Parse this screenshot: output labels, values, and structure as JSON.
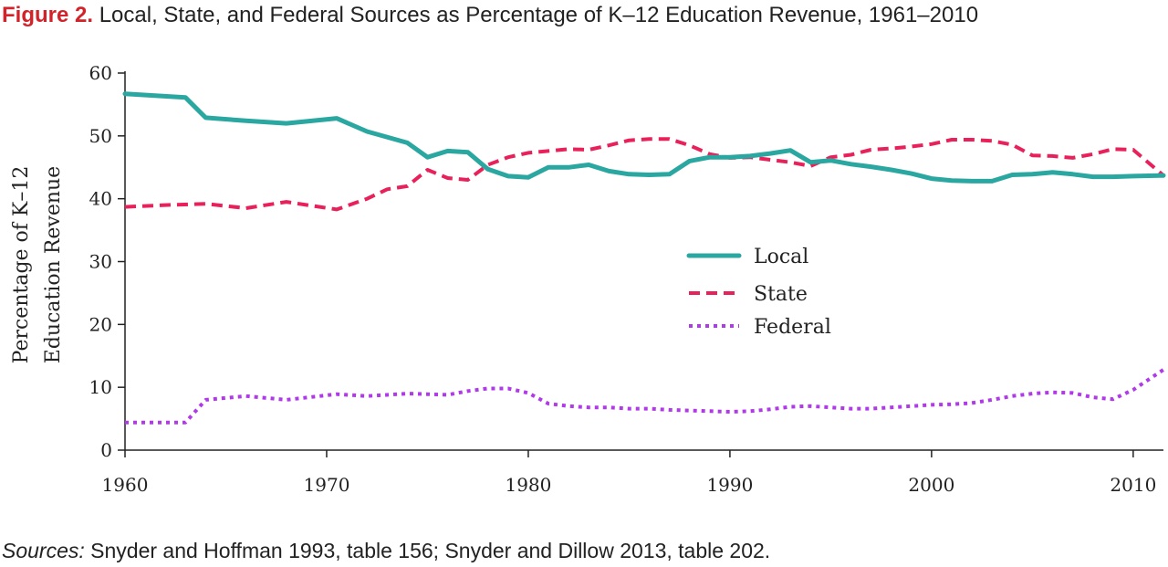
{
  "title": {
    "label": "Figure 2.",
    "text": "Local, State, and Federal Sources as Percentage of K–12 Education Revenue, 1961–2010"
  },
  "sources": {
    "label": "Sources:",
    "text": "Snyder and Hoffman 1993, table 156; Snyder and Dillow 2013, table 202."
  },
  "colors": {
    "local": "#2aa7a0",
    "state": "#e8215a",
    "federal": "#b03ae8",
    "title_accent": "#d2232a",
    "axis": "#222222"
  },
  "chart_data": {
    "type": "line",
    "title": "Local, State, and Federal Sources as Percentage of K–12 Education Revenue, 1961–2010",
    "xlabel": "",
    "ylabel_lines": [
      "Percentage of K–12",
      "Education Revenue"
    ],
    "xlim": [
      1960,
      2011.5
    ],
    "ylim": [
      0,
      60
    ],
    "xticks": [
      1960,
      1970,
      1980,
      1990,
      2000,
      2010
    ],
    "yticks": [
      0,
      10,
      20,
      30,
      40,
      50,
      60
    ],
    "grid": false,
    "legend_position": "center-right",
    "series": [
      {
        "name": "Local",
        "style": "solid",
        "x": [
          1960,
          1963,
          1964,
          1966,
          1968,
          1970.5,
          1972,
          1974,
          1975,
          1976,
          1977,
          1978,
          1979,
          1980,
          1981,
          1982,
          1983,
          1984,
          1985,
          1986,
          1987,
          1988,
          1989,
          1990,
          1991,
          1992,
          1993,
          1994,
          1995,
          1996,
          1997,
          1998,
          1999,
          2000,
          2001,
          2002,
          2003,
          2004,
          2005,
          2006,
          2007,
          2008,
          2009,
          2010,
          2011.5
        ],
        "values": [
          56.7,
          56.1,
          52.9,
          52.4,
          52.0,
          52.8,
          50.7,
          48.9,
          46.6,
          47.6,
          47.4,
          44.7,
          43.6,
          43.4,
          45.0,
          45.0,
          45.4,
          44.4,
          43.9,
          43.8,
          43.9,
          46.0,
          46.6,
          46.6,
          46.8,
          47.2,
          47.7,
          45.8,
          46.1,
          45.5,
          45.1,
          44.6,
          44.0,
          43.2,
          42.9,
          42.8,
          42.8,
          43.8,
          43.9,
          44.2,
          43.9,
          43.5,
          43.5,
          43.6,
          43.7
        ]
      },
      {
        "name": "State",
        "style": "dashed",
        "x": [
          1960,
          1962,
          1964,
          1966,
          1968,
          1970.5,
          1972,
          1973,
          1974,
          1975,
          1976,
          1977,
          1978,
          1979,
          1980,
          1981,
          1982,
          1983,
          1984,
          1985,
          1986,
          1987,
          1988,
          1989,
          1990,
          1991,
          1992,
          1993,
          1994,
          1995,
          1996,
          1997,
          1998,
          1999,
          2000,
          2001,
          2002,
          2003,
          2004,
          2005,
          2006,
          2007,
          2008,
          2009,
          2010,
          2011.5
        ],
        "values": [
          38.7,
          39.0,
          39.2,
          38.5,
          39.5,
          38.3,
          40.0,
          41.5,
          42.0,
          44.6,
          43.3,
          43.0,
          45.4,
          46.6,
          47.3,
          47.6,
          47.9,
          47.8,
          48.5,
          49.3,
          49.5,
          49.5,
          48.5,
          47.1,
          46.5,
          46.6,
          46.2,
          45.8,
          45.2,
          46.6,
          47.0,
          47.8,
          48.0,
          48.3,
          48.7,
          49.4,
          49.4,
          49.2,
          48.6,
          46.9,
          46.8,
          46.5,
          47.1,
          47.9,
          47.8,
          43.7
        ]
      },
      {
        "name": "Federal",
        "style": "dotted",
        "x": [
          1960,
          1963,
          1964,
          1966,
          1968,
          1970.5,
          1972,
          1974,
          1975,
          1976,
          1977,
          1978,
          1979,
          1980,
          1981,
          1982,
          1983,
          1984,
          1985,
          1986,
          1987,
          1988,
          1989,
          1990,
          1991,
          1992,
          1993,
          1994,
          1995,
          1996,
          1997,
          1998,
          1999,
          2000,
          2001,
          2002,
          2003,
          2004,
          2005,
          2006,
          2007,
          2008,
          2009,
          2010,
          2011.5
        ],
        "values": [
          4.4,
          4.4,
          8.0,
          8.6,
          8.0,
          8.9,
          8.6,
          9.0,
          8.9,
          8.8,
          9.4,
          9.8,
          9.8,
          9.1,
          7.4,
          7.0,
          6.8,
          6.8,
          6.6,
          6.6,
          6.4,
          6.3,
          6.2,
          6.1,
          6.2,
          6.5,
          6.9,
          7.0,
          6.8,
          6.6,
          6.6,
          6.8,
          7.0,
          7.2,
          7.3,
          7.5,
          8.0,
          8.6,
          9.0,
          9.2,
          9.1,
          8.4,
          8.1,
          9.6,
          12.8
        ]
      }
    ]
  }
}
